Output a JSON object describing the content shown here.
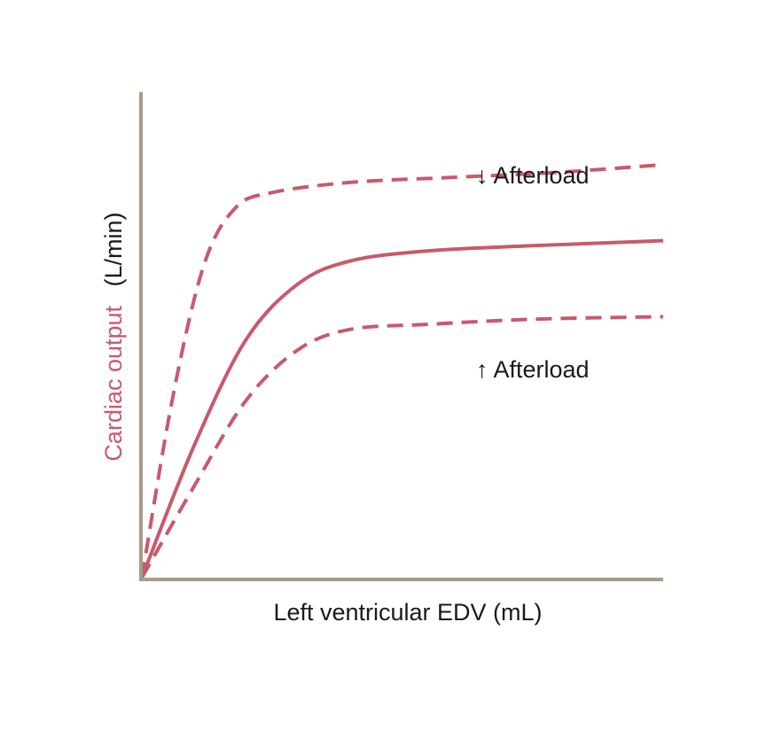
{
  "chart_data": {
    "type": "line",
    "title": "",
    "xlabel": "Left ventricular EDV (mL)",
    "ylabel": {
      "main": "Cardiac output",
      "unit": "(L/min)"
    },
    "xlim": [
      0,
      100
    ],
    "ylim": [
      0,
      100
    ],
    "grid": false,
    "ticks": false,
    "series": [
      {
        "name": "↓ Afterload",
        "style": "dashed",
        "points": [
          [
            0,
            0
          ],
          [
            6,
            36
          ],
          [
            12,
            62
          ],
          [
            18,
            73
          ],
          [
            25,
            76
          ],
          [
            40,
            78
          ],
          [
            60,
            79
          ],
          [
            80,
            80
          ],
          [
            100,
            81.5
          ]
        ]
      },
      {
        "name": "",
        "style": "solid",
        "points": [
          [
            0,
            0
          ],
          [
            10,
            26
          ],
          [
            20,
            47
          ],
          [
            30,
            58
          ],
          [
            40,
            62.5
          ],
          [
            55,
            64.5
          ],
          [
            75,
            65.5
          ],
          [
            100,
            66.5
          ]
        ]
      },
      {
        "name": "↑ Afterload",
        "style": "dashed",
        "points": [
          [
            0,
            0
          ],
          [
            10,
            18
          ],
          [
            20,
            35
          ],
          [
            30,
            45
          ],
          [
            40,
            49
          ],
          [
            55,
            50
          ],
          [
            75,
            51
          ],
          [
            100,
            51.5
          ]
        ]
      }
    ],
    "annotations": [
      {
        "text": "↓ Afterload",
        "series": 0
      },
      {
        "text": "↑ Afterload",
        "series": 2
      }
    ],
    "colors": {
      "curve": "#c9596b",
      "axis": "#a59c88",
      "ylabel_main": "#c9596b",
      "text": "#1a1a1a"
    }
  }
}
